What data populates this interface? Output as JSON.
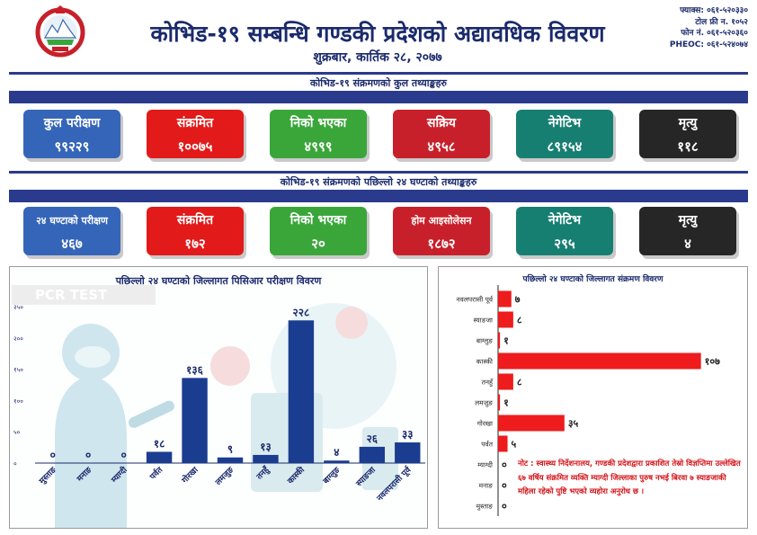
{
  "header": {
    "title": "कोभिड-१९ सम्बन्धि गण्डकी प्रदेशको अद्यावधिक विवरण",
    "date": "शुक्रबार, कार्तिक २८, २०७७",
    "contacts": [
      "फ्याक्स: ०६१-५२०३३०",
      "टोल फ्री न. १०५२",
      "फोन नं. ०६१-५२०३६०",
      "PHEOC: ०६१-५२४०७४"
    ]
  },
  "section_total": {
    "title": "कोभिड-१९ संक्रमणको कुल तथ्याङ्कहरु",
    "cards": [
      {
        "label": "कुल परीक्षण",
        "value": "९९२२९",
        "color": "#3565b8"
      },
      {
        "label": "संक्रमित",
        "value": "१००७५",
        "color": "#e21a1a"
      },
      {
        "label": "निको भएका",
        "value": "४९९९",
        "color": "#3aa63a"
      },
      {
        "label": "सक्रिय",
        "value": "४९५८",
        "color": "#c8202a"
      },
      {
        "label": "नेगेटिभ",
        "value": "८९१५४",
        "color": "#177f72"
      },
      {
        "label": "मृत्यु",
        "value": "११८",
        "color": "#262626"
      }
    ]
  },
  "section_24h": {
    "title": "कोभिड-१९ संक्रमणको पछिल्लो २४ घण्टाको तथ्याङ्कहरु",
    "cards": [
      {
        "label": "२४ घण्टाको परीक्षण",
        "value": "४६७",
        "color": "#3565b8"
      },
      {
        "label": "संक्रमित",
        "value": "१७२",
        "color": "#e21a1a"
      },
      {
        "label": "निको भएका",
        "value": "२०",
        "color": "#3aa63a"
      },
      {
        "label": "होम आइसोलेसन",
        "value": "१८७२",
        "color": "#c8202a"
      },
      {
        "label": "नेगेटिभ",
        "value": "२९५",
        "color": "#177f72"
      },
      {
        "label": "मृत्यु",
        "value": "४",
        "color": "#262626"
      }
    ]
  },
  "pcr_badge": "PCR TEST",
  "note": "नोट : स्वास्थ्य निर्देशनालय, गण्डकी प्रदेशद्वारा प्रकाशित तेस्रो विज्ञप्तिमा उल्लेखित ६७ वर्षिय संक्रमित व्यक्ति म्याग्दी जिल्लाका पुरुष नभई बिरवा ७ स्याङजाकी महिला रहेको पुष्टि भएको व्यहोरा अनुरोध छ ।",
  "chart_data": [
    {
      "type": "bar",
      "title": "पछिल्लो २४ घण्टाको जिल्लागत पिसिआर परीक्षण विवरण",
      "categories": [
        "मुस्ताङ",
        "मनाङ",
        "म्याग्दी",
        "पर्वत",
        "गोरखा",
        "लमजुङ",
        "तनहुँ",
        "कास्की",
        "बाग्लुङ",
        "स्याङजा",
        "नवलपरासी पूर्व"
      ],
      "values": [
        0,
        0,
        0,
        18,
        136,
        9,
        13,
        228,
        4,
        26,
        33
      ],
      "value_labels": [
        "०",
        "०",
        "०",
        "१८",
        "१३६",
        "९",
        "१३",
        "२२८",
        "४",
        "२६",
        "३३"
      ],
      "yticks": [
        0,
        50,
        100,
        150,
        200,
        250
      ],
      "ytick_labels": [
        "०",
        "५०",
        "१००",
        "१५०",
        "२००",
        "२५०"
      ],
      "ylim": [
        0,
        250
      ],
      "color": "#1b3d8f"
    },
    {
      "type": "bar",
      "orientation": "horizontal",
      "title": "पछिल्लो २४ घण्टाको जिल्लागत संक्रमण विवरण",
      "categories": [
        "नवलपरासी पूर्व",
        "स्याङजा",
        "बाग्लुङ",
        "कास्की",
        "तनहुँ",
        "लमजुङ",
        "गोरखा",
        "पर्वत",
        "म्याग्दी",
        "मनाङ",
        "मुस्ताङ"
      ],
      "values": [
        7,
        8,
        1,
        107,
        8,
        1,
        35,
        5,
        0,
        0,
        0
      ],
      "value_labels": [
        "७",
        "८",
        "१",
        "१०७",
        "८",
        "१",
        "३५",
        "५",
        "०",
        "०",
        "०"
      ],
      "xlim": [
        0,
        110
      ],
      "color": "#ee1c1c"
    }
  ]
}
